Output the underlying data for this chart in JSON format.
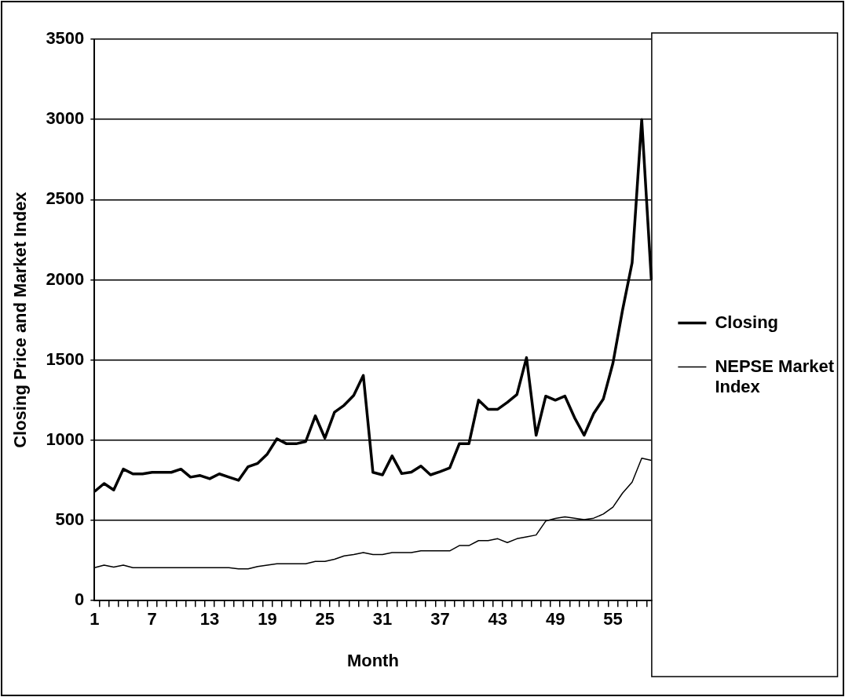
{
  "chart_data": {
    "type": "line",
    "xlabel": "Month",
    "ylabel": "Closing Price and Market Index",
    "categories": [
      "1",
      null,
      null,
      null,
      null,
      null,
      "7",
      null,
      null,
      null,
      null,
      null,
      "13",
      null,
      null,
      null,
      null,
      null,
      "19",
      null,
      null,
      null,
      null,
      null,
      "25",
      null,
      null,
      null,
      null,
      null,
      "31",
      null,
      null,
      null,
      null,
      null,
      "37",
      null,
      null,
      null,
      null,
      null,
      "43",
      null,
      null,
      null,
      null,
      null,
      "49",
      null,
      null,
      null,
      null,
      null,
      "55",
      null,
      null,
      null,
      null
    ],
    "series": [
      {
        "name": "Closing",
        "color": "#000000",
        "values": [
          680,
          730,
          690,
          820,
          790,
          790,
          800,
          800,
          800,
          820,
          770,
          780,
          760,
          790,
          770,
          750,
          835,
          856,
          914,
          1009,
          978,
          978,
          992,
          1152,
          1013,
          1175,
          1218,
          1279,
          1404,
          800,
          784,
          902,
          792,
          801,
          839,
          784,
          804,
          827,
          978,
          978,
          1250,
          1193,
          1193,
          1236,
          1285,
          1515,
          1031,
          1275,
          1250,
          1275,
          1141,
          1031,
          1167,
          1257,
          1480,
          1811,
          2107,
          3000,
          2000
        ]
      },
      {
        "name": "NEPSE Market Index",
        "color": "#000000",
        "values": [
          205,
          221,
          209,
          221,
          205,
          205,
          205,
          205,
          205,
          205,
          205,
          205,
          205,
          205,
          205,
          198,
          198,
          213,
          221,
          230,
          230,
          230,
          230,
          244,
          244,
          258,
          279,
          287,
          299,
          287,
          287,
          299,
          299,
          299,
          310,
          310,
          310,
          310,
          343,
          343,
          374,
          374,
          386,
          362,
          386,
          397,
          409,
          496,
          512,
          522,
          514,
          505,
          514,
          540,
          583,
          670,
          739,
          888,
          874
        ]
      }
    ],
    "ylim": [
      0,
      3500
    ],
    "yticks": [
      0,
      500,
      1000,
      1500,
      2000,
      2500,
      3000,
      3500
    ],
    "grid": "y",
    "legend": "right",
    "marker": "none",
    "line_style": "solid"
  }
}
